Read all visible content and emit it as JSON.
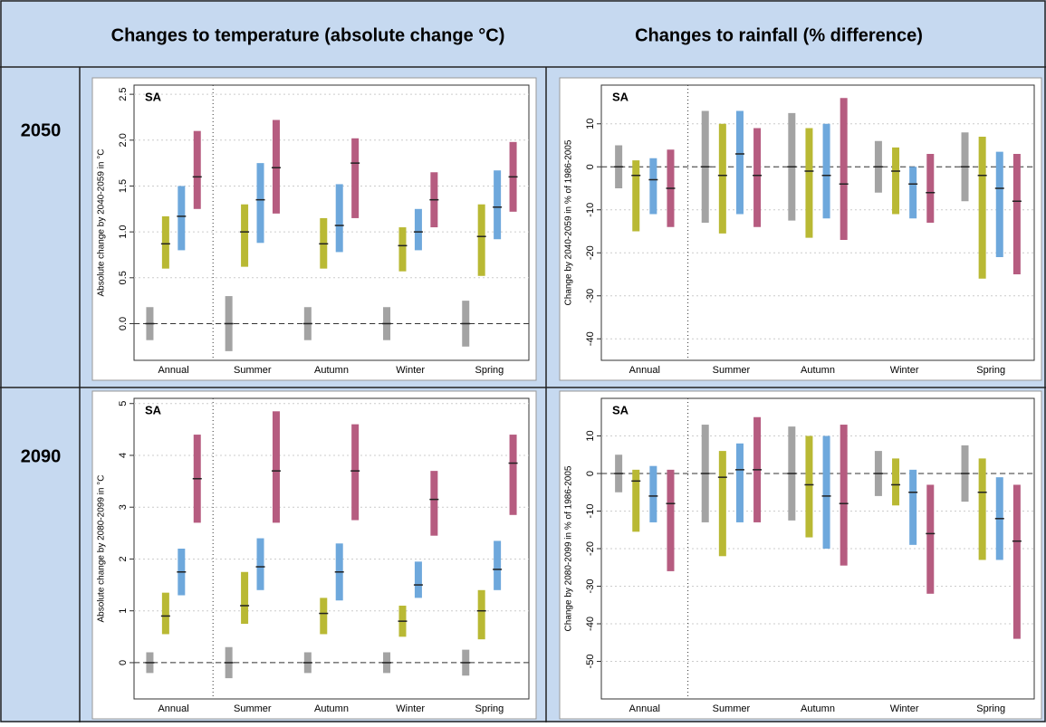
{
  "header": {
    "temperature": "Changes to temperature (absolute change °C)",
    "rainfall": "Changes to rainfall (% difference)"
  },
  "rows": [
    {
      "label": "2050",
      "charts": [
        {
          "type": "range-bar",
          "region": "SA",
          "ylabel": "Absolute change by 2040-2059 in °C",
          "categories": [
            "Annual",
            "Summer",
            "Autumn",
            "Winter",
            "Spring"
          ],
          "ylim": [
            -0.4,
            2.6
          ],
          "yticks": [
            {
              "value": 0,
              "label": "0.0"
            },
            0.5,
            {
              "value": 1,
              "label": "1.0"
            },
            1.5,
            {
              "value": 2,
              "label": "2.0"
            },
            2.5
          ],
          "series": [
            {
              "color": "#a3a3a3",
              "low": [
                -0.18,
                -0.3,
                -0.18,
                -0.18,
                -0.25
              ],
              "high": [
                0.18,
                0.3,
                0.18,
                0.18,
                0.25
              ],
              "median": [
                0,
                0,
                0,
                0,
                0
              ]
            },
            {
              "color": "#b9b934",
              "low": [
                0.6,
                0.62,
                0.6,
                0.57,
                0.52
              ],
              "high": [
                1.17,
                1.3,
                1.15,
                1.05,
                1.3
              ],
              "median": [
                0.87,
                1.0,
                0.87,
                0.85,
                0.95
              ]
            },
            {
              "color": "#6ea8dc",
              "low": [
                0.8,
                0.88,
                0.78,
                0.8,
                0.92
              ],
              "high": [
                1.5,
                1.75,
                1.52,
                1.25,
                1.67
              ],
              "median": [
                1.17,
                1.35,
                1.07,
                1.0,
                1.27
              ]
            },
            {
              "color": "#b65c80",
              "low": [
                1.25,
                1.2,
                1.15,
                1.05,
                1.22
              ],
              "high": [
                2.1,
                2.22,
                2.02,
                1.65,
                1.98
              ],
              "median": [
                1.6,
                1.7,
                1.75,
                1.35,
                1.6
              ]
            }
          ]
        },
        {
          "type": "range-bar",
          "region": "SA",
          "ylabel": "Change by 2040-2059 in % of 1986-2005",
          "categories": [
            "Annual",
            "Summer",
            "Autumn",
            "Winter",
            "Spring"
          ],
          "ylim": [
            -45,
            19
          ],
          "yticks": [
            -40,
            -30,
            -20,
            -10,
            0,
            10
          ],
          "series": [
            {
              "color": "#a3a3a3",
              "low": [
                -5,
                -13,
                -12.5,
                -6,
                -8
              ],
              "high": [
                5,
                13,
                12.5,
                6,
                8
              ],
              "median": [
                0,
                0,
                0,
                0,
                0
              ]
            },
            {
              "color": "#b9b934",
              "low": [
                -15,
                -15.5,
                -16.5,
                -11,
                -26
              ],
              "high": [
                1.5,
                10,
                9,
                4.5,
                7
              ],
              "median": [
                -2,
                -2,
                -1,
                -1,
                -2
              ]
            },
            {
              "color": "#6ea8dc",
              "low": [
                -11,
                -11,
                -12,
                -12,
                -21
              ],
              "high": [
                2,
                13,
                10,
                0,
                3.5
              ],
              "median": [
                -3,
                3,
                -2,
                -4,
                -5
              ]
            },
            {
              "color": "#b65c80",
              "low": [
                -14,
                -14,
                -17,
                -13,
                -25
              ],
              "high": [
                4,
                9,
                16,
                3,
                3
              ],
              "median": [
                -5,
                -2,
                -4,
                -6,
                -8
              ]
            }
          ]
        }
      ]
    },
    {
      "label": "2090",
      "charts": [
        {
          "type": "range-bar",
          "region": "SA",
          "ylabel": "Absolute change by 2080-2099 in °C",
          "categories": [
            "Annual",
            "Summer",
            "Autumn",
            "Winter",
            "Spring"
          ],
          "ylim": [
            -0.7,
            5.1
          ],
          "yticks": [
            0,
            1,
            2,
            3,
            4,
            5
          ],
          "series": [
            {
              "color": "#a3a3a3",
              "low": [
                -0.2,
                -0.3,
                -0.2,
                -0.2,
                -0.25
              ],
              "high": [
                0.2,
                0.3,
                0.2,
                0.2,
                0.25
              ],
              "median": [
                0,
                0,
                0,
                0,
                0
              ]
            },
            {
              "color": "#b9b934",
              "low": [
                0.55,
                0.75,
                0.55,
                0.5,
                0.45
              ],
              "high": [
                1.35,
                1.75,
                1.25,
                1.1,
                1.4
              ],
              "median": [
                0.9,
                1.1,
                0.95,
                0.8,
                1.0
              ]
            },
            {
              "color": "#6ea8dc",
              "low": [
                1.3,
                1.4,
                1.2,
                1.25,
                1.4
              ],
              "high": [
                2.2,
                2.4,
                2.3,
                1.95,
                2.35
              ],
              "median": [
                1.75,
                1.85,
                1.75,
                1.5,
                1.8
              ]
            },
            {
              "color": "#b65c80",
              "low": [
                2.7,
                2.7,
                2.75,
                2.45,
                2.85
              ],
              "high": [
                4.4,
                4.85,
                4.6,
                3.7,
                4.4
              ],
              "median": [
                3.55,
                3.7,
                3.7,
                3.15,
                3.85
              ]
            }
          ]
        },
        {
          "type": "range-bar",
          "region": "SA",
          "ylabel": "Change by 2080-2099 in % of 1986-2005",
          "categories": [
            "Annual",
            "Summer",
            "Autumn",
            "Winter",
            "Spring"
          ],
          "ylim": [
            -60,
            20
          ],
          "yticks": [
            -50,
            -40,
            -30,
            -20,
            -10,
            0,
            10
          ],
          "series": [
            {
              "color": "#a3a3a3",
              "low": [
                -5,
                -13,
                -12.5,
                -6,
                -7.5
              ],
              "high": [
                5,
                13,
                12.5,
                6,
                7.5
              ],
              "median": [
                0,
                0,
                0,
                0,
                0
              ]
            },
            {
              "color": "#b9b934",
              "low": [
                -15.5,
                -22,
                -17,
                -8.5,
                -23
              ],
              "high": [
                1,
                6,
                10,
                4,
                4
              ],
              "median": [
                -2,
                -1,
                -3,
                -3,
                -5
              ]
            },
            {
              "color": "#6ea8dc",
              "low": [
                -13,
                -13,
                -20,
                -19,
                -23
              ],
              "high": [
                2,
                8,
                10,
                1,
                -1
              ],
              "median": [
                -6,
                1,
                -6,
                -5,
                -12
              ]
            },
            {
              "color": "#b65c80",
              "low": [
                -26,
                -13,
                -24.5,
                -32,
                -44
              ],
              "high": [
                1,
                15,
                13,
                -3,
                -3
              ],
              "median": [
                -8,
                1,
                -8,
                -16,
                -18
              ]
            }
          ]
        }
      ]
    }
  ]
}
